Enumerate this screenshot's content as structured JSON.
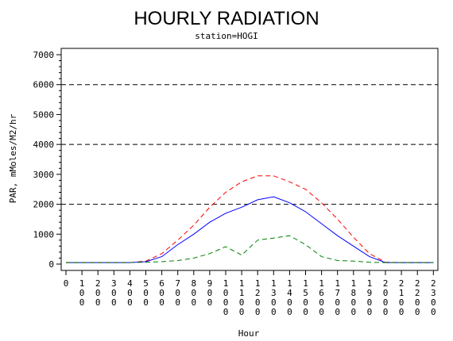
{
  "chart_data": {
    "type": "line",
    "title": "HOURLY RADIATION",
    "subtitle": "station=HOGI",
    "xlabel": "Hour",
    "ylabel": "PAR, mMoles/M2/hr",
    "x": [
      "0",
      "100",
      "200",
      "300",
      "400",
      "500",
      "600",
      "700",
      "800",
      "900",
      "1000",
      "1100",
      "1200",
      "1300",
      "1400",
      "1500",
      "1600",
      "1700",
      "1800",
      "1900",
      "2000",
      "2100",
      "2200",
      "2300"
    ],
    "ylim": [
      0,
      7000
    ],
    "yticks": [
      "0",
      "1000",
      "2000",
      "3000",
      "4000",
      "5000",
      "6000",
      "7000"
    ],
    "grid_lines_y": [
      2000,
      4000,
      6000
    ],
    "series": [
      {
        "color": "#ff0000",
        "dash": "dashed",
        "values": [
          50,
          50,
          50,
          50,
          50,
          100,
          350,
          800,
          1300,
          1900,
          2400,
          2750,
          2950,
          2950,
          2750,
          2500,
          2050,
          1500,
          900,
          350,
          60,
          50,
          50,
          50
        ]
      },
      {
        "color": "#0000ff",
        "dash": "solid",
        "values": [
          50,
          50,
          50,
          50,
          50,
          80,
          250,
          650,
          1000,
          1400,
          1700,
          1900,
          2150,
          2250,
          2050,
          1750,
          1350,
          950,
          600,
          250,
          50,
          50,
          50,
          50
        ]
      },
      {
        "color": "#008000",
        "dash": "dashed",
        "values": [
          50,
          50,
          50,
          50,
          50,
          60,
          80,
          120,
          200,
          350,
          580,
          300,
          800,
          870,
          950,
          650,
          250,
          120,
          100,
          60,
          50,
          50,
          50,
          50
        ]
      }
    ]
  }
}
